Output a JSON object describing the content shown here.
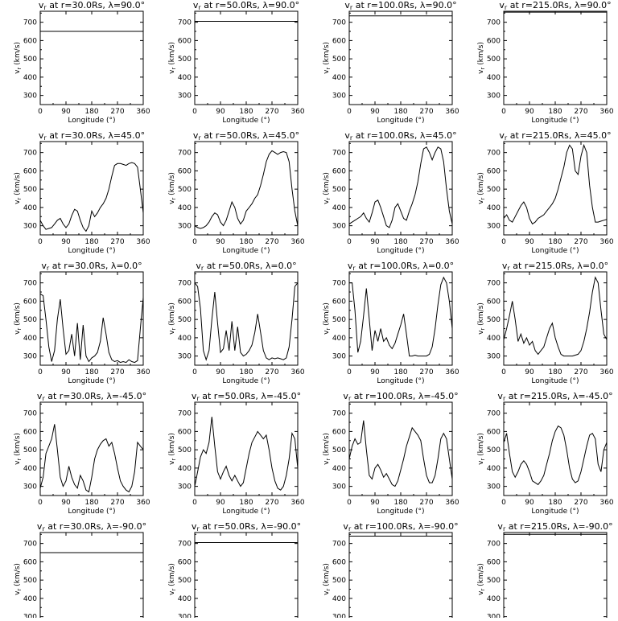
{
  "chart_data": {
    "type": "line",
    "layout": "5 rows x 4 columns grid of panels",
    "radii": [
      "30.0Rs",
      "50.0Rs",
      "100.0Rs",
      "215.0Rs"
    ],
    "latitudes": [
      "90.0",
      "45.0",
      "0.0",
      "-45.0",
      "-90.0"
    ],
    "xlabel": "Longitude (°)",
    "ylabel": "v_r (km/s)",
    "xlim": [
      0,
      360
    ],
    "xticks": [
      0,
      90,
      180,
      270,
      360
    ],
    "ylim": [
      250,
      760
    ],
    "yticks": [
      300,
      400,
      500,
      600,
      700
    ],
    "grid": false,
    "panels": [
      {
        "title": "v_r at r=30.0Rs, λ=90.0°",
        "x": [
          0,
          360
        ],
        "y": [
          650,
          650
        ]
      },
      {
        "title": "v_r at r=50.0Rs, λ=90.0°",
        "x": [
          0,
          360
        ],
        "y": [
          705,
          705
        ]
      },
      {
        "title": "v_r at r=100.0Rs, λ=90.0°",
        "x": [
          0,
          360
        ],
        "y": [
          735,
          735
        ]
      },
      {
        "title": "v_r at r=215.0Rs, λ=90.0°",
        "x": [
          0,
          360
        ],
        "y": [
          755,
          755
        ]
      },
      {
        "title": "v_r at r=30.0Rs, λ=45.0°",
        "x": [
          0,
          10,
          20,
          30,
          40,
          50,
          60,
          70,
          80,
          90,
          100,
          110,
          120,
          130,
          140,
          150,
          160,
          170,
          180,
          190,
          200,
          210,
          220,
          230,
          240,
          250,
          260,
          270,
          280,
          290,
          300,
          310,
          320,
          330,
          340,
          350,
          360
        ],
        "y": [
          330,
          300,
          280,
          285,
          290,
          310,
          330,
          340,
          310,
          290,
          310,
          355,
          390,
          380,
          330,
          290,
          270,
          300,
          380,
          350,
          370,
          400,
          420,
          450,
          500,
          570,
          630,
          640,
          640,
          635,
          630,
          640,
          645,
          640,
          620,
          500,
          370
        ]
      },
      {
        "title": "v_r at r=50.0Rs, λ=45.0°",
        "x": [
          0,
          10,
          20,
          30,
          40,
          50,
          60,
          70,
          80,
          90,
          100,
          110,
          120,
          130,
          140,
          150,
          160,
          170,
          180,
          190,
          200,
          210,
          220,
          230,
          240,
          250,
          260,
          270,
          280,
          290,
          300,
          310,
          320,
          330,
          340,
          350,
          360
        ],
        "y": [
          300,
          290,
          285,
          290,
          300,
          320,
          350,
          370,
          360,
          320,
          300,
          330,
          380,
          430,
          400,
          340,
          310,
          330,
          380,
          400,
          420,
          450,
          470,
          520,
          580,
          650,
          690,
          710,
          700,
          690,
          700,
          705,
          700,
          650,
          500,
          380,
          300
        ]
      },
      {
        "title": "v_r at r=100.0Rs, λ=45.0°",
        "x": [
          0,
          10,
          20,
          30,
          40,
          50,
          60,
          70,
          80,
          90,
          100,
          110,
          120,
          130,
          140,
          150,
          160,
          170,
          180,
          190,
          200,
          210,
          220,
          230,
          240,
          250,
          260,
          270,
          280,
          290,
          300,
          310,
          320,
          330,
          340,
          350,
          360
        ],
        "y": [
          310,
          320,
          330,
          340,
          350,
          370,
          340,
          320,
          370,
          430,
          440,
          400,
          350,
          300,
          290,
          330,
          400,
          420,
          380,
          340,
          330,
          380,
          420,
          470,
          540,
          640,
          720,
          730,
          700,
          660,
          700,
          730,
          720,
          650,
          500,
          380,
          310
        ]
      },
      {
        "title": "v_r at r=215.0Rs, λ=45.0°",
        "x": [
          0,
          10,
          20,
          30,
          40,
          50,
          60,
          70,
          80,
          90,
          100,
          110,
          120,
          130,
          140,
          150,
          160,
          170,
          180,
          190,
          200,
          210,
          220,
          230,
          240,
          250,
          260,
          270,
          280,
          290,
          300,
          310,
          320,
          330,
          340,
          350,
          360
        ],
        "y": [
          340,
          360,
          330,
          320,
          350,
          380,
          410,
          430,
          400,
          340,
          310,
          320,
          340,
          350,
          360,
          380,
          400,
          420,
          450,
          500,
          560,
          620,
          700,
          740,
          720,
          600,
          580,
          680,
          740,
          700,
          520,
          400,
          320,
          320,
          325,
          330,
          335
        ]
      },
      {
        "title": "v_r at r=30.0Rs, λ=0.0°",
        "x": [
          0,
          10,
          20,
          30,
          40,
          50,
          60,
          70,
          80,
          90,
          100,
          110,
          120,
          130,
          140,
          150,
          160,
          170,
          180,
          190,
          200,
          210,
          220,
          230,
          240,
          250,
          260,
          270,
          280,
          290,
          300,
          310,
          320,
          330,
          340,
          350,
          360
        ],
        "y": [
          640,
          630,
          500,
          350,
          270,
          330,
          500,
          610,
          450,
          310,
          330,
          420,
          300,
          480,
          280,
          470,
          300,
          270,
          290,
          300,
          320,
          380,
          510,
          420,
          320,
          280,
          270,
          275,
          265,
          270,
          265,
          280,
          270,
          265,
          275,
          450,
          620
        ]
      },
      {
        "title": "v_r at r=50.0Rs, λ=0.0°",
        "x": [
          0,
          10,
          20,
          30,
          40,
          50,
          60,
          70,
          80,
          90,
          100,
          110,
          120,
          130,
          140,
          150,
          160,
          170,
          180,
          190,
          200,
          210,
          220,
          230,
          240,
          250,
          260,
          270,
          280,
          290,
          300,
          310,
          320,
          330,
          340,
          350,
          360
        ],
        "y": [
          700,
          680,
          560,
          330,
          280,
          330,
          500,
          650,
          480,
          320,
          340,
          440,
          330,
          490,
          330,
          460,
          320,
          300,
          310,
          330,
          360,
          430,
          530,
          430,
          330,
          290,
          280,
          290,
          285,
          290,
          285,
          280,
          290,
          350,
          500,
          680,
          700
        ]
      },
      {
        "title": "v_r at r=100.0Rs, λ=0.0°",
        "x": [
          0,
          10,
          20,
          30,
          40,
          50,
          60,
          70,
          80,
          90,
          100,
          110,
          120,
          130,
          140,
          150,
          160,
          170,
          180,
          190,
          200,
          210,
          220,
          230,
          240,
          250,
          260,
          270,
          280,
          290,
          300,
          310,
          320,
          330,
          340,
          350,
          360
        ],
        "y": [
          700,
          700,
          550,
          320,
          380,
          520,
          670,
          500,
          330,
          440,
          380,
          450,
          380,
          400,
          360,
          340,
          370,
          420,
          470,
          530,
          420,
          300,
          300,
          305,
          300,
          300,
          300,
          300,
          310,
          350,
          450,
          580,
          690,
          730,
          700,
          600,
          450
        ]
      },
      {
        "title": "v_r at r=215.0Rs, λ=0.0°",
        "x": [
          0,
          10,
          20,
          30,
          40,
          50,
          60,
          70,
          80,
          90,
          100,
          110,
          120,
          130,
          140,
          150,
          160,
          170,
          180,
          190,
          200,
          210,
          220,
          230,
          240,
          250,
          260,
          270,
          280,
          290,
          300,
          310,
          320,
          330,
          340,
          350,
          360
        ],
        "y": [
          390,
          450,
          520,
          600,
          500,
          380,
          420,
          370,
          400,
          360,
          380,
          330,
          310,
          330,
          350,
          400,
          450,
          480,
          400,
          350,
          310,
          300,
          300,
          300,
          300,
          305,
          310,
          330,
          380,
          450,
          540,
          650,
          730,
          700,
          550,
          420,
          390
        ]
      },
      {
        "title": "v_r at r=30.0Rs, λ=-45.0°",
        "x": [
          0,
          10,
          20,
          30,
          40,
          50,
          60,
          70,
          80,
          90,
          100,
          110,
          120,
          130,
          140,
          150,
          160,
          170,
          180,
          190,
          200,
          210,
          220,
          230,
          240,
          250,
          260,
          270,
          280,
          290,
          300,
          310,
          320,
          330,
          340,
          350,
          360
        ],
        "y": [
          290,
          350,
          480,
          520,
          560,
          640,
          500,
          350,
          300,
          330,
          410,
          350,
          310,
          290,
          360,
          330,
          280,
          270,
          350,
          450,
          500,
          530,
          550,
          560,
          520,
          540,
          480,
          400,
          330,
          300,
          280,
          270,
          300,
          380,
          540,
          520,
          500
        ]
      },
      {
        "title": "v_r at r=50.0Rs, λ=-45.0°",
        "x": [
          0,
          10,
          20,
          30,
          40,
          50,
          60,
          70,
          80,
          90,
          100,
          110,
          120,
          130,
          140,
          150,
          160,
          170,
          180,
          190,
          200,
          210,
          220,
          230,
          240,
          250,
          260,
          270,
          280,
          290,
          300,
          310,
          320,
          330,
          340,
          350,
          360
        ],
        "y": [
          300,
          380,
          460,
          500,
          480,
          540,
          680,
          520,
          380,
          340,
          380,
          410,
          360,
          330,
          360,
          330,
          300,
          320,
          400,
          480,
          540,
          570,
          600,
          580,
          560,
          580,
          500,
          400,
          330,
          290,
          280,
          300,
          360,
          450,
          590,
          560,
          400
        ]
      },
      {
        "title": "v_r at r=100.0Rs, λ=-45.0°",
        "x": [
          0,
          10,
          20,
          30,
          40,
          50,
          60,
          70,
          80,
          90,
          100,
          110,
          120,
          130,
          140,
          150,
          160,
          170,
          180,
          190,
          200,
          210,
          220,
          230,
          240,
          250,
          260,
          270,
          280,
          290,
          300,
          310,
          320,
          330,
          340,
          350,
          360
        ],
        "y": [
          450,
          520,
          560,
          530,
          540,
          660,
          500,
          360,
          340,
          400,
          420,
          390,
          350,
          370,
          340,
          310,
          300,
          330,
          390,
          450,
          520,
          570,
          620,
          600,
          580,
          550,
          450,
          360,
          320,
          320,
          360,
          450,
          560,
          590,
          560,
          450,
          340
        ]
      },
      {
        "title": "v_r at r=215.0Rs, λ=-45.0°",
        "x": [
          0,
          10,
          20,
          30,
          40,
          50,
          60,
          70,
          80,
          90,
          100,
          110,
          120,
          130,
          140,
          150,
          160,
          170,
          180,
          190,
          200,
          210,
          220,
          230,
          240,
          250,
          260,
          270,
          280,
          290,
          300,
          310,
          320,
          330,
          340,
          350,
          360
        ],
        "y": [
          540,
          590,
          480,
          380,
          350,
          380,
          420,
          440,
          420,
          380,
          330,
          320,
          310,
          330,
          360,
          420,
          480,
          550,
          600,
          630,
          620,
          580,
          500,
          400,
          340,
          320,
          330,
          380,
          450,
          520,
          580,
          590,
          560,
          420,
          380,
          500,
          540
        ]
      },
      {
        "title": "v_r at r=30.0Rs, λ=-90.0°",
        "x": [
          0,
          360
        ],
        "y": [
          650,
          650
        ]
      },
      {
        "title": "v_r at r=50.0Rs, λ=-90.0°",
        "x": [
          0,
          360
        ],
        "y": [
          705,
          705
        ]
      },
      {
        "title": "v_r at r=100.0Rs, λ=-90.0°",
        "x": [
          0,
          360
        ],
        "y": [
          740,
          740
        ]
      },
      {
        "title": "v_r at r=215.0Rs, λ=-90.0°",
        "x": [
          0,
          360
        ],
        "y": [
          750,
          750
        ]
      }
    ]
  },
  "strings": {
    "xlabel_text": "Longitude (°)",
    "ylabel_main": "v",
    "ylabel_sub": "r",
    "ylabel_unit": " (km/s)"
  }
}
